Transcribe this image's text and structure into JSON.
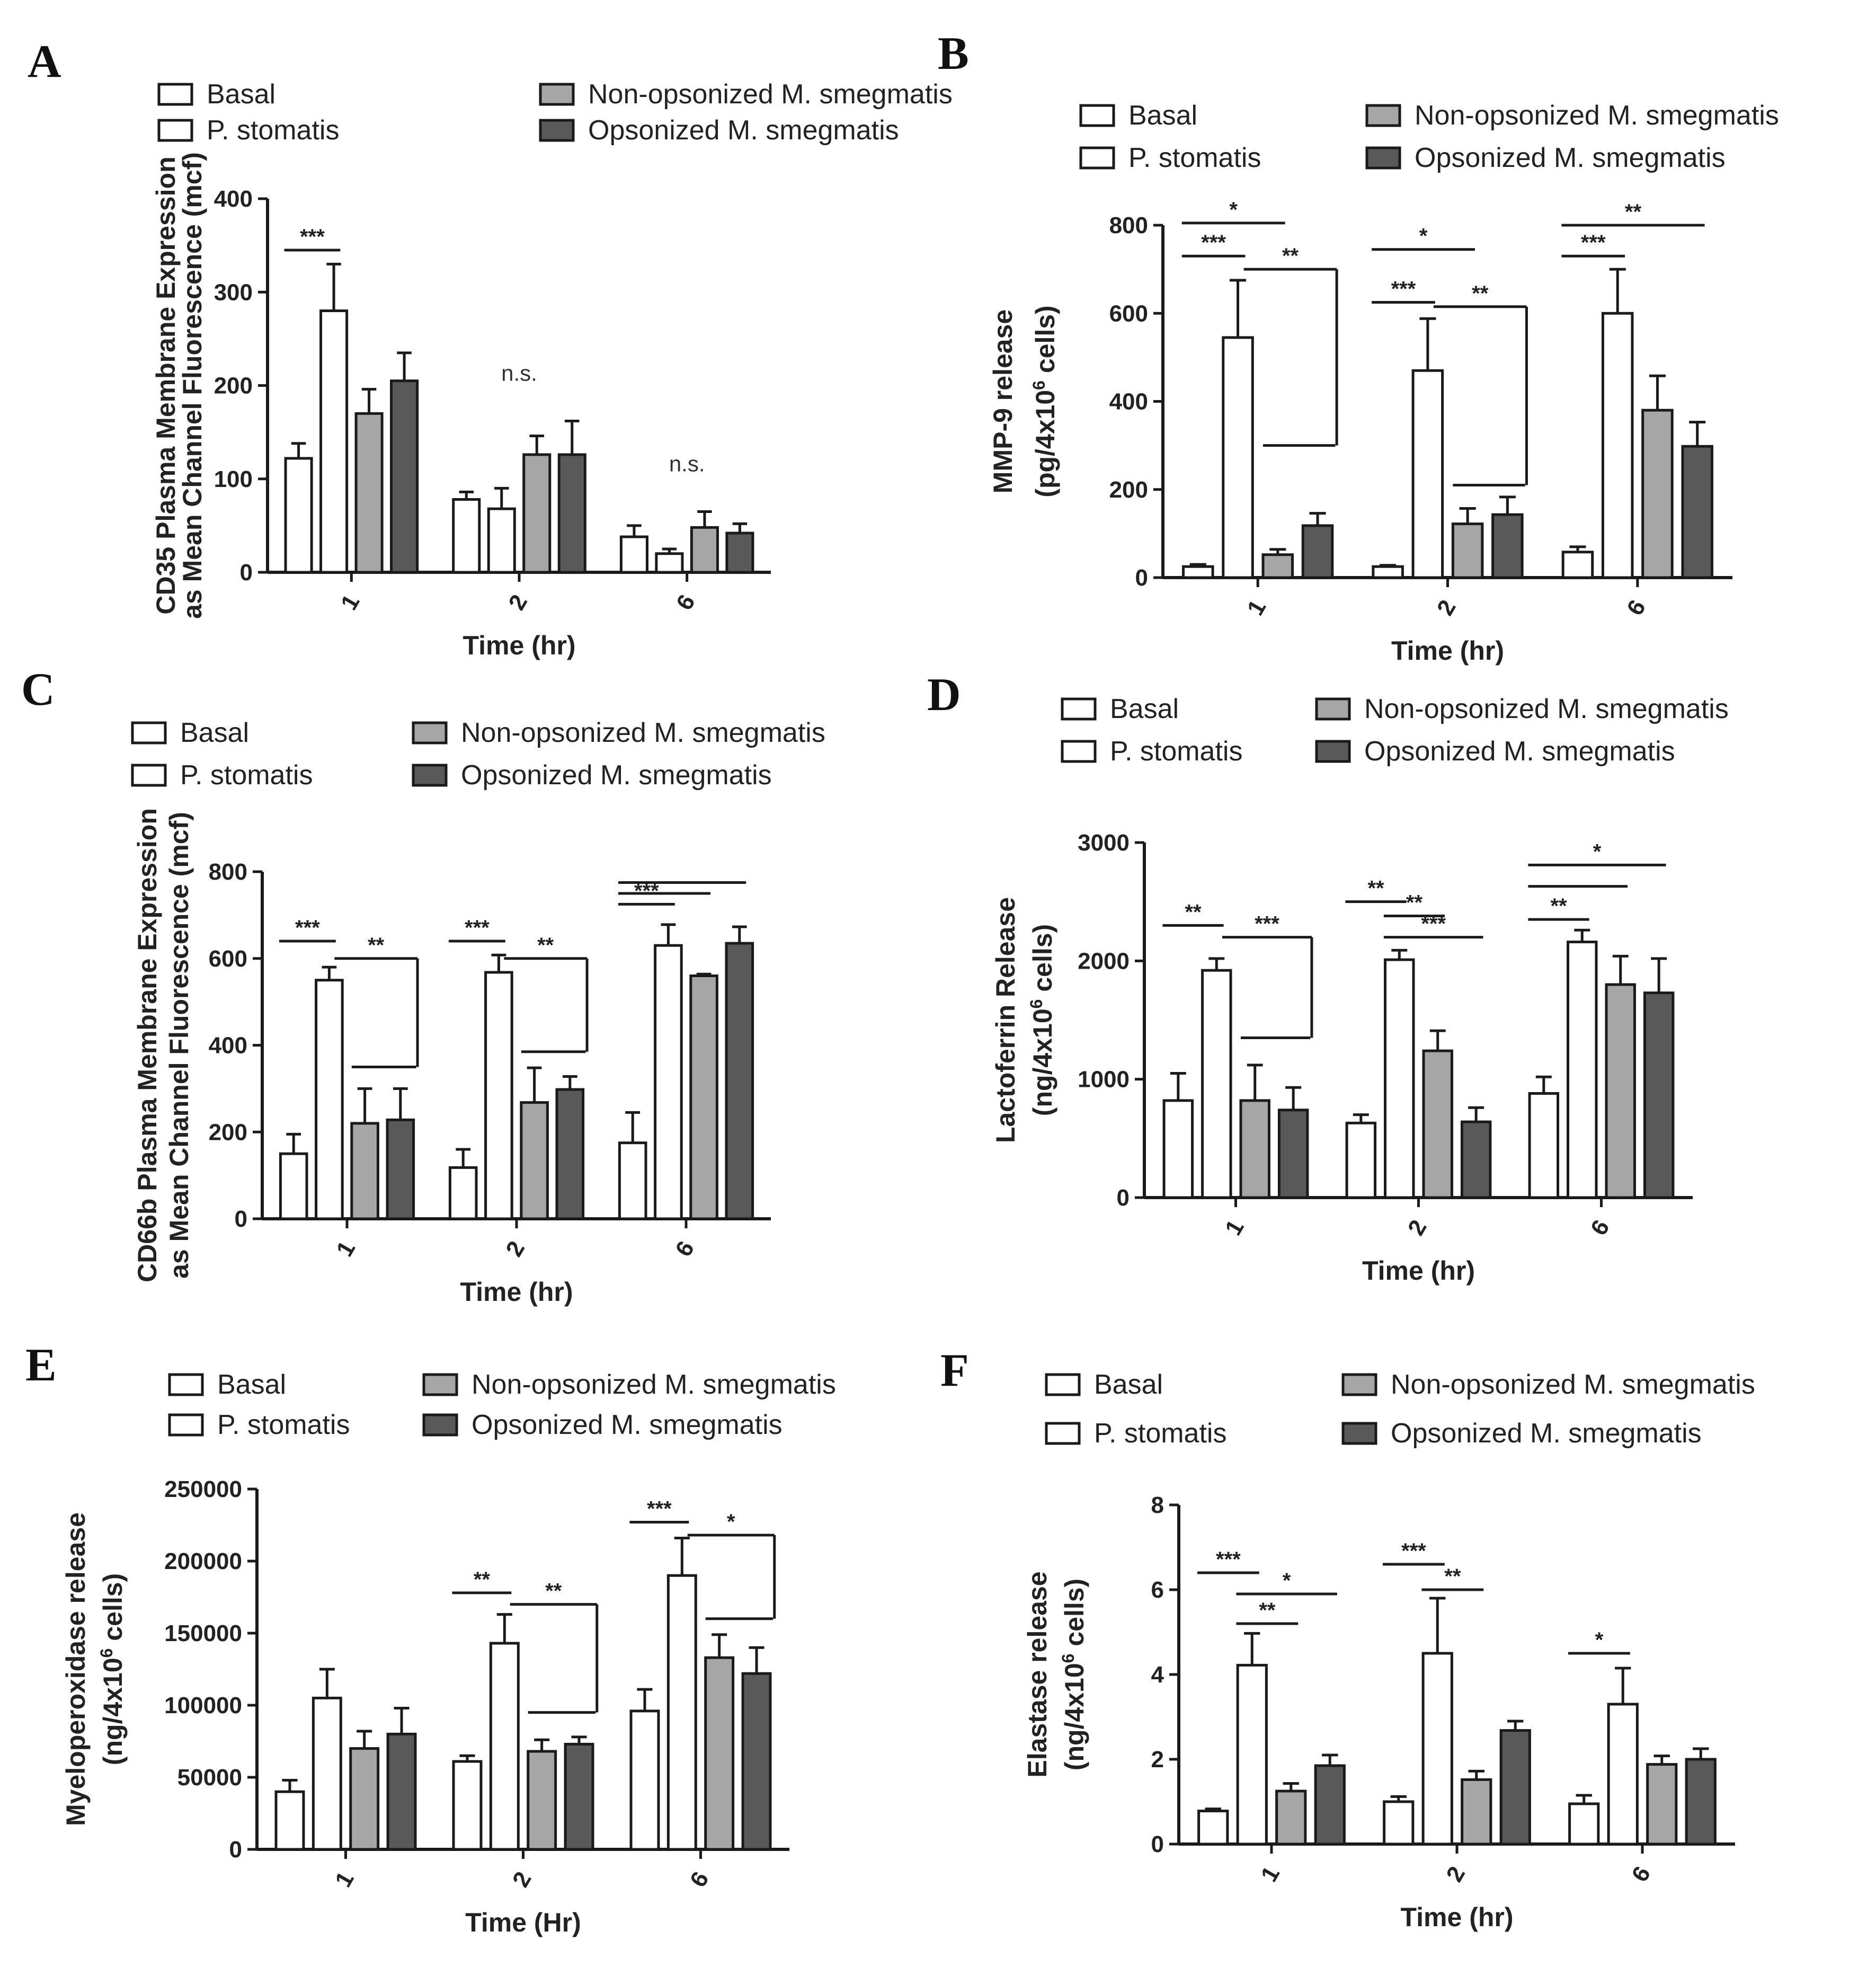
{
  "legend": {
    "basal": "Basal",
    "p_stomatis": "P. stomatis",
    "non_opsonized": "Non-opsonized M. smegmatis",
    "opsonized": "Opsonized M. smegmatis"
  },
  "colors": {
    "basal": "#ffffff",
    "p_stomatis": "#ffffff",
    "non_opsonized": "#a6a6a6",
    "opsonized": "#595959",
    "stroke": "#1a1a1a"
  },
  "chart_data": [
    {
      "panel": "A",
      "type": "bar",
      "categories": [
        "1",
        "2",
        "6"
      ],
      "xlabel": "Time (hr)",
      "ylabel": [
        "CD35 Plasma Membrane Expression",
        "as Mean Channel Fluorescence (mcf)"
      ],
      "ylim": [
        0,
        400
      ],
      "yticks": [
        "0",
        "100",
        "200",
        "300",
        "400"
      ],
      "series": [
        {
          "name": "Basal",
          "values": [
            122,
            78,
            38
          ],
          "errors": [
            16,
            8,
            12
          ]
        },
        {
          "name": "P. stomatis",
          "values": [
            280,
            68,
            20
          ],
          "errors": [
            50,
            22,
            5
          ]
        },
        {
          "name": "Non-opsonized M. smegmatis",
          "values": [
            170,
            126,
            48
          ],
          "errors": [
            26,
            20,
            17
          ]
        },
        {
          "name": "Opsonized M. smegmatis",
          "values": [
            205,
            126,
            42
          ],
          "errors": [
            30,
            36,
            10
          ]
        }
      ],
      "annotations": [
        {
          "text": "***",
          "group": 0,
          "from": 0,
          "to": 1,
          "y": 345
        },
        {
          "text": "n.s.",
          "group": 1,
          "y": 205
        },
        {
          "text": "n.s.",
          "group": 2,
          "y": 108
        }
      ]
    },
    {
      "panel": "B",
      "type": "bar",
      "categories": [
        "1",
        "2",
        "6"
      ],
      "xlabel": "Time (hr)",
      "ylabel": [
        "MMP-9 release",
        "(pg/4x10^6 cells)"
      ],
      "ylim": [
        0,
        800
      ],
      "yticks": [
        "0",
        "200",
        "400",
        "600",
        "800"
      ],
      "series": [
        {
          "name": "Basal",
          "values": [
            25,
            25,
            58
          ],
          "errors": [
            5,
            3,
            12
          ]
        },
        {
          "name": "P. stomatis",
          "values": [
            545,
            470,
            600
          ],
          "errors": [
            130,
            118,
            100
          ]
        },
        {
          "name": "Non-opsonized M. smegmatis",
          "values": [
            52,
            122,
            380
          ],
          "errors": [
            12,
            35,
            78
          ]
        },
        {
          "name": "Opsonized M. smegmatis",
          "values": [
            118,
            143,
            298
          ],
          "errors": [
            28,
            40,
            55
          ]
        }
      ],
      "annotations": [
        {
          "text": "***",
          "group": 0,
          "from": 0,
          "to": 1,
          "y": 730
        },
        {
          "text": "*",
          "group": 0,
          "from": 0,
          "to": 2,
          "y": 805
        },
        {
          "text": "**",
          "group": 0,
          "from": 1,
          "to": 3,
          "y": 700,
          "drop": 300
        },
        {
          "text": "***",
          "group": 1,
          "from": 0,
          "to": 1,
          "y": 625
        },
        {
          "text": "*",
          "group": 1,
          "from": 0,
          "to": 2,
          "y": 745
        },
        {
          "text": "**",
          "group": 1,
          "from": 1,
          "to": 3,
          "y": 615,
          "drop": 210
        },
        {
          "text": "***",
          "group": 2,
          "from": 0,
          "to": 1,
          "y": 730
        },
        {
          "text": "**",
          "group": 2,
          "from": 0,
          "to": 3,
          "y": 800
        }
      ]
    },
    {
      "panel": "C",
      "type": "bar",
      "categories": [
        "1",
        "2",
        "6"
      ],
      "xlabel": "Time (hr)",
      "ylabel": [
        "CD66b Plasma Membrane Expression",
        "as Mean Channel Fluorescence (mcf)"
      ],
      "ylim": [
        0,
        800
      ],
      "yticks": [
        "0",
        "200",
        "400",
        "600",
        "800"
      ],
      "series": [
        {
          "name": "Basal",
          "values": [
            150,
            118,
            175
          ],
          "errors": [
            45,
            42,
            70
          ]
        },
        {
          "name": "P. stomatis",
          "values": [
            550,
            568,
            630
          ],
          "errors": [
            30,
            40,
            48
          ]
        },
        {
          "name": "Non-opsonized M. smegmatis",
          "values": [
            220,
            268,
            560
          ],
          "errors": [
            80,
            80,
            4
          ]
        },
        {
          "name": "Opsonized M. smegmatis",
          "values": [
            228,
            298,
            635
          ],
          "errors": [
            72,
            30,
            38
          ]
        }
      ],
      "annotations": [
        {
          "text": "***",
          "group": 0,
          "from": 0,
          "to": 1,
          "y": 640
        },
        {
          "text": "**",
          "group": 0,
          "from": 1,
          "to": 3,
          "y": 600,
          "drop": 350
        },
        {
          "text": "***",
          "group": 1,
          "from": 0,
          "to": 1,
          "y": 640
        },
        {
          "text": "**",
          "group": 1,
          "from": 1,
          "to": 3,
          "y": 600,
          "drop": 385
        },
        {
          "text": "***",
          "group": 2,
          "from": 0,
          "to": 1,
          "y": 725
        },
        {
          "text": "",
          "group": 2,
          "from": 0,
          "to": 2,
          "y": 750
        },
        {
          "text": "",
          "group": 2,
          "from": 0,
          "to": 3,
          "y": 775
        }
      ]
    },
    {
      "panel": "D",
      "type": "bar",
      "categories": [
        "1",
        "2",
        "6"
      ],
      "xlabel": "Time (hr)",
      "ylabel": [
        "Lactoferrin Release",
        "(ng/4x10^6 cells)"
      ],
      "ylim": [
        0,
        3000
      ],
      "yticks": [
        "0",
        "1000",
        "2000",
        "3000"
      ],
      "series": [
        {
          "name": "Basal",
          "values": [
            820,
            630,
            880
          ],
          "errors": [
            230,
            70,
            140
          ]
        },
        {
          "name": "P. stomatis",
          "values": [
            1920,
            2010,
            2160
          ],
          "errors": [
            100,
            80,
            100
          ]
        },
        {
          "name": "Non-opsonized M. smegmatis",
          "values": [
            820,
            1240,
            1800
          ],
          "errors": [
            300,
            170,
            240
          ]
        },
        {
          "name": "Opsonized M. smegmatis",
          "values": [
            740,
            640,
            1730
          ],
          "errors": [
            190,
            120,
            290
          ]
        }
      ],
      "annotations": [
        {
          "text": "**",
          "group": 0,
          "from": 0,
          "to": 1,
          "y": 2300
        },
        {
          "text": "***",
          "group": 0,
          "from": 1,
          "to": 3,
          "y": 2200,
          "drop": 1350
        },
        {
          "text": "**",
          "group": 1,
          "from": 0,
          "to": 1,
          "y": 2500
        },
        {
          "text": "**",
          "group": 1,
          "from": 1,
          "to": 2,
          "y": 2380
        },
        {
          "text": "***",
          "group": 1,
          "from": 1,
          "to": 3,
          "y": 2200
        },
        {
          "text": "**",
          "group": 2,
          "from": 0,
          "to": 1,
          "y": 2350
        },
        {
          "text": "",
          "group": 2,
          "from": 0,
          "to": 2,
          "y": 2630
        },
        {
          "text": "*",
          "group": 2,
          "from": 0,
          "to": 3,
          "y": 2810
        }
      ]
    },
    {
      "panel": "E",
      "type": "bar",
      "categories": [
        "1",
        "2",
        "6"
      ],
      "xlabel": "Time (Hr)",
      "ylabel": [
        "Myeloperoxidase release",
        "(ng/4x10^6 cells)"
      ],
      "ylim": [
        0,
        250000
      ],
      "yticks": [
        "0",
        "50000",
        "100000",
        "150000",
        "200000",
        "250000"
      ],
      "series": [
        {
          "name": "Basal",
          "values": [
            40000,
            61000,
            96000
          ],
          "errors": [
            8000,
            4000,
            15000
          ]
        },
        {
          "name": "P. stomatis",
          "values": [
            105000,
            143000,
            190000
          ],
          "errors": [
            20000,
            20000,
            26000
          ]
        },
        {
          "name": "Non-opsonized M. smegmatis",
          "values": [
            70000,
            68000,
            133000
          ],
          "errors": [
            12000,
            8000,
            16000
          ]
        },
        {
          "name": "Opsonized M. smegmatis",
          "values": [
            80000,
            73000,
            122000
          ],
          "errors": [
            18000,
            5000,
            18000
          ]
        }
      ],
      "annotations": [
        {
          "text": "**",
          "group": 1,
          "from": 0,
          "to": 1,
          "y": 178000
        },
        {
          "text": "**",
          "group": 1,
          "from": 1,
          "to": 3,
          "y": 170000,
          "drop": 95000
        },
        {
          "text": "***",
          "group": 2,
          "from": 0,
          "to": 1,
          "y": 227000
        },
        {
          "text": "*",
          "group": 2,
          "from": 1,
          "to": 3,
          "y": 218000,
          "drop": 160000
        }
      ]
    },
    {
      "panel": "F",
      "type": "bar",
      "categories": [
        "1",
        "2",
        "6"
      ],
      "xlabel": "Time (hr)",
      "ylabel": [
        "Elastase release",
        "(ng/4x10^6 cells)"
      ],
      "ylim": [
        0,
        8
      ],
      "yticks": [
        "0",
        "2",
        "4",
        "6",
        "8"
      ],
      "series": [
        {
          "name": "Basal",
          "values": [
            0.78,
            1.0,
            0.95
          ],
          "errors": [
            0.05,
            0.12,
            0.2
          ]
        },
        {
          "name": "P. stomatis",
          "values": [
            4.22,
            4.5,
            3.3
          ],
          "errors": [
            0.75,
            1.3,
            0.85
          ]
        },
        {
          "name": "Non-opsonized M. smegmatis",
          "values": [
            1.25,
            1.52,
            1.88
          ],
          "errors": [
            0.18,
            0.2,
            0.2
          ]
        },
        {
          "name": "Opsonized M. smegmatis",
          "values": [
            1.85,
            2.68,
            2.0
          ],
          "errors": [
            0.25,
            0.22,
            0.25
          ]
        }
      ],
      "annotations": [
        {
          "text": "***",
          "group": 0,
          "from": 0,
          "to": 1,
          "y": 6.4
        },
        {
          "text": "**",
          "group": 0,
          "from": 1,
          "to": 2,
          "y": 5.2
        },
        {
          "text": "*",
          "group": 0,
          "from": 1,
          "to": 3,
          "y": 5.9
        },
        {
          "text": "***",
          "group": 1,
          "from": 0,
          "to": 1,
          "y": 6.6
        },
        {
          "text": "**",
          "group": 1,
          "from": 1,
          "to": 2,
          "y": 6.0
        },
        {
          "text": "*",
          "group": 2,
          "from": 0,
          "to": 1,
          "y": 4.5
        }
      ]
    }
  ]
}
